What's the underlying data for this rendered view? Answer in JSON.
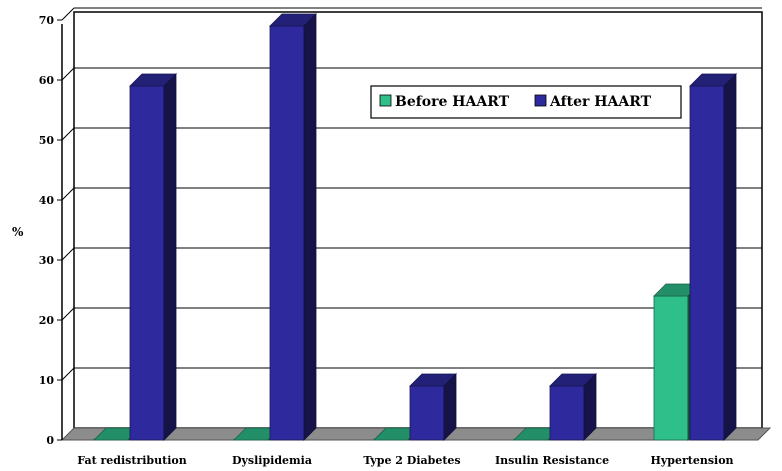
{
  "chart_data": {
    "type": "bar",
    "three_d": true,
    "ylabel": "%",
    "xlabel": "",
    "ylim": [
      0,
      70
    ],
    "yticks": [
      0,
      10,
      20,
      30,
      40,
      50,
      60,
      70
    ],
    "grid": true,
    "legend_placement": "top-right (inside plot)",
    "categories": [
      "Fat redistribution",
      "Dyslipidemia",
      "Type 2 Diabetes",
      "Insulin Resistance",
      "Hypertension"
    ],
    "series": [
      {
        "name": "Before HAART",
        "values": [
          0,
          0,
          0,
          0,
          24
        ],
        "color": "#2fbf8a"
      },
      {
        "name": "After HAART",
        "values": [
          59,
          69,
          9,
          9,
          59
        ],
        "color": "#2e2a9e"
      }
    ]
  }
}
